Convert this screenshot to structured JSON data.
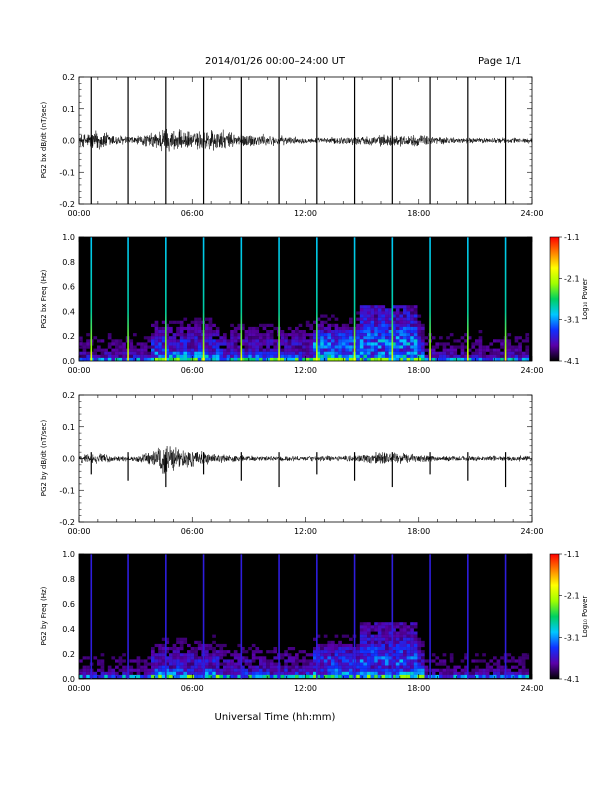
{
  "header": {
    "title": "2014/01/26  00:00–24:00 UT",
    "page": "Page 1/1"
  },
  "x_axis": {
    "label": "Universal Time (hh:mm)",
    "ticks": [
      "00:00",
      "06:00",
      "12:00",
      "18:00",
      "24:00"
    ]
  },
  "colorbar": {
    "label": "Log₁₀ Power",
    "ticks": [
      "-1.1",
      "-2.1",
      "-3.1",
      "-4.1"
    ],
    "colors": [
      "#000000",
      "#5a00a8",
      "#1030ff",
      "#00c8ff",
      "#00d060",
      "#a0ff00",
      "#ffff00",
      "#ff8000",
      "#ff0000"
    ]
  },
  "chart_data": [
    {
      "type": "line",
      "ylabel": "PG2 bx dB/dt (nT/sec)",
      "xlim": [
        0,
        24
      ],
      "ylim": [
        -0.2,
        0.2
      ],
      "ytick_labels": [
        "0.2",
        "0.1",
        "0.0",
        "-0.1",
        "-0.2"
      ],
      "spike_times_h": [
        0.65,
        2.6,
        4.6,
        6.6,
        8.6,
        10.6,
        12.6,
        14.6,
        16.6,
        18.6,
        20.6,
        22.6
      ],
      "envelope": {
        "t_h": [
          0,
          1,
          2,
          3,
          4,
          4.5,
          5,
          6,
          7,
          8,
          9,
          10,
          11,
          12,
          13,
          14,
          15,
          16,
          17,
          18,
          19,
          20,
          21,
          22,
          23,
          24
        ],
        "amplitude": [
          0.02,
          0.04,
          0.02,
          0.015,
          0.03,
          0.05,
          0.04,
          0.03,
          0.045,
          0.03,
          0.025,
          0.02,
          0.015,
          0.01,
          0.01,
          0.015,
          0.015,
          0.02,
          0.02,
          0.02,
          0.015,
          0.01,
          0.01,
          0.01,
          0.01,
          0.01
        ]
      }
    },
    {
      "type": "heatmap",
      "ylabel": "PG2 bx Freq (Hz)",
      "xlim": [
        0,
        24
      ],
      "ylim": [
        0,
        1.0
      ],
      "ytick_labels": [
        "1.0",
        "0.8",
        "0.6",
        "0.4",
        "0.2",
        "0.0"
      ],
      "zlim": [
        -4.1,
        -1.1
      ],
      "spike_times_h": [
        0.65,
        2.6,
        4.6,
        6.6,
        8.6,
        10.6,
        12.6,
        14.6,
        16.6,
        18.6,
        20.6,
        22.6
      ]
    },
    {
      "type": "line",
      "ylabel": "PG2 by dB/dt (nT/sec)",
      "xlim": [
        0,
        24
      ],
      "ylim": [
        -0.2,
        0.2
      ],
      "ytick_labels": [
        "0.2",
        "0.1",
        "0.0",
        "-0.1",
        "-0.2"
      ],
      "spike_times_h": [
        0.65,
        2.6,
        4.6,
        6.6,
        8.6,
        10.6,
        12.6,
        14.6,
        16.6,
        18.6,
        20.6,
        22.6
      ],
      "envelope": {
        "t_h": [
          0,
          1,
          2,
          3,
          4,
          4.5,
          5,
          6,
          7,
          8,
          9,
          10,
          11,
          12,
          13,
          14,
          15,
          16,
          17,
          18,
          19,
          20,
          21,
          22,
          23,
          24
        ],
        "amplitude": [
          0.015,
          0.02,
          0.01,
          0.01,
          0.03,
          0.06,
          0.04,
          0.03,
          0.02,
          0.015,
          0.01,
          0.01,
          0.01,
          0.01,
          0.01,
          0.01,
          0.015,
          0.025,
          0.02,
          0.015,
          0.01,
          0.01,
          0.01,
          0.01,
          0.01,
          0.01
        ]
      }
    },
    {
      "type": "heatmap",
      "ylabel": "PG2 by Freq (Hz)",
      "xlim": [
        0,
        24
      ],
      "ylim": [
        0,
        1.0
      ],
      "ytick_labels": [
        "1.0",
        "0.8",
        "0.6",
        "0.4",
        "0.2",
        "0.0"
      ],
      "zlim": [
        -4.1,
        -1.1
      ],
      "spike_times_h": [
        0.65,
        2.6,
        4.6,
        6.6,
        8.6,
        10.6,
        12.6,
        14.6,
        16.6,
        18.6,
        20.6,
        22.6
      ]
    }
  ]
}
